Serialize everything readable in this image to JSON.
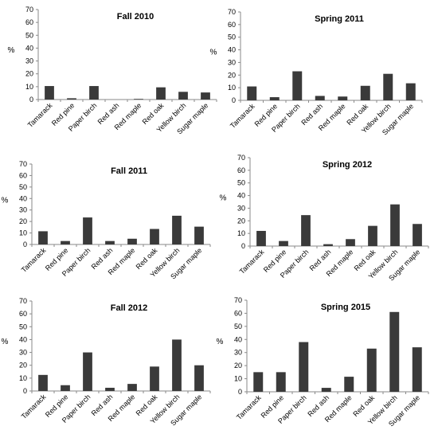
{
  "chart_data": [
    {
      "type": "bar",
      "title": "Fall 2010",
      "ylabel": "%",
      "ylim": [
        0,
        70
      ],
      "yticks": [
        0,
        10,
        20,
        30,
        40,
        50,
        60,
        70
      ],
      "categories": [
        "Tamarack",
        "Red pine",
        "Paper birch",
        "Red ash",
        "Red maple",
        "Red oak",
        "Yellow birch",
        "Sugar maple"
      ],
      "values": [
        10.5,
        1,
        10.5,
        0,
        0.5,
        9.5,
        6,
        5.5
      ],
      "bar_color": "#3a3a3a"
    },
    {
      "type": "bar",
      "title": "Spring 2011",
      "ylabel": "%",
      "ylim": [
        0,
        70
      ],
      "yticks": [
        0,
        10,
        20,
        30,
        40,
        50,
        60,
        70
      ],
      "categories": [
        "Tamarack",
        "Red pine",
        "Paper birch",
        "Red ash",
        "Red maple",
        "Red oak",
        "Yellow birch",
        "Sugar maple"
      ],
      "values": [
        11,
        2.5,
        23,
        3.5,
        3,
        11.5,
        21,
        13.5
      ],
      "bar_color": "#3a3a3a"
    },
    {
      "type": "bar",
      "title": "Fall 2011",
      "ylabel": "%",
      "ylim": [
        0,
        70
      ],
      "yticks": [
        0,
        10,
        20,
        30,
        40,
        50,
        60,
        70
      ],
      "categories": [
        "Tamarack",
        "Red pine",
        "Paper birch",
        "Red ash",
        "Red maple",
        "Red oak",
        "Yellow birch",
        "Sugar maple"
      ],
      "values": [
        11.5,
        3,
        23.5,
        3,
        5,
        13.5,
        25,
        15.5
      ],
      "bar_color": "#3a3a3a"
    },
    {
      "type": "bar",
      "title": "Spring 2012",
      "ylabel": "%",
      "ylim": [
        0,
        70
      ],
      "yticks": [
        0,
        10,
        20,
        30,
        40,
        50,
        60,
        70
      ],
      "categories": [
        "Tamarack",
        "Red pine",
        "Paper birch",
        "Red ash",
        "Red maple",
        "Red oak",
        "Yellow birch",
        "Sugar maple"
      ],
      "values": [
        12,
        4,
        24.5,
        1.5,
        5.5,
        16,
        33,
        17.5
      ],
      "bar_color": "#3a3a3a"
    },
    {
      "type": "bar",
      "title": "Fall 2012",
      "ylabel": "%",
      "ylim": [
        0,
        70
      ],
      "yticks": [
        0,
        10,
        20,
        30,
        40,
        50,
        60,
        70
      ],
      "categories": [
        "Tamarack",
        "Red pine",
        "Paper birch",
        "Red ash",
        "Red maple",
        "Red oak",
        "Yellow birch",
        "Sugar maple"
      ],
      "values": [
        12.5,
        4.5,
        30,
        2.5,
        5.5,
        19,
        40,
        20
      ],
      "bar_color": "#3a3a3a"
    },
    {
      "type": "bar",
      "title": "Spring 2015",
      "ylabel": "%",
      "ylim": [
        0,
        70
      ],
      "yticks": [
        0,
        10,
        20,
        30,
        40,
        50,
        60,
        70
      ],
      "categories": [
        "Tamarack",
        "Red pine",
        "Paper birch",
        "Red ash",
        "Red maple",
        "Red oak",
        "Yellow birch",
        "Sugar maple"
      ],
      "values": [
        15,
        15,
        38,
        3,
        11.5,
        33,
        61,
        34
      ],
      "bar_color": "#3a3a3a"
    }
  ]
}
